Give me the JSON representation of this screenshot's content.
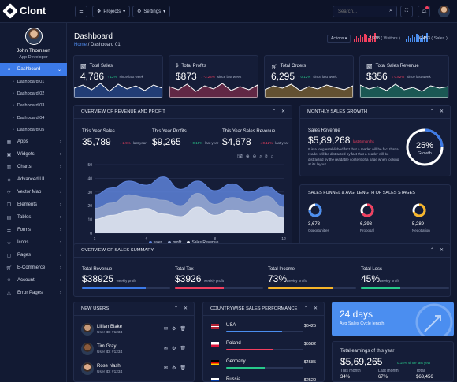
{
  "app": {
    "name": "Clont"
  },
  "topbar": {
    "projects_label": "Projects",
    "settings_label": "Settings",
    "search_placeholder": "Search..."
  },
  "colors": {
    "accent": "#3c7ae8",
    "positive": "#27c98a",
    "negative": "#f23f5f",
    "warning": "#f7b529"
  },
  "user": {
    "name": "John Thomson",
    "role": "App Developer"
  },
  "sidebar": {
    "dashboard_label": "Dashboard",
    "sub_items": [
      "Dashboard 01",
      "Dashboard 02",
      "Dashboard 03",
      "Dashboard 04",
      "Dashboard 05"
    ],
    "items": [
      {
        "label": "Apps",
        "icon": "grid-icon"
      },
      {
        "label": "Widgets",
        "icon": "widget-icon"
      },
      {
        "label": "Charts",
        "icon": "chart-icon"
      },
      {
        "label": "Advanced UI",
        "icon": "layers-icon"
      },
      {
        "label": "Vector Map",
        "icon": "map-icon"
      },
      {
        "label": "Elements",
        "icon": "cube-icon"
      },
      {
        "label": "Tables",
        "icon": "table-icon"
      },
      {
        "label": "Forms",
        "icon": "form-icon"
      },
      {
        "label": "Icons",
        "icon": "star-icon"
      },
      {
        "label": "Pages",
        "icon": "page-icon"
      },
      {
        "label": "E-Commerce",
        "icon": "cart-icon"
      },
      {
        "label": "Account",
        "icon": "user-icon"
      },
      {
        "label": "Error Pages",
        "icon": "warning-icon"
      }
    ]
  },
  "page": {
    "title": "Dashboard",
    "breadcrumb_home": "Home",
    "breadcrumb_sep": "/",
    "breadcrumb_current": "Dashboard 01",
    "actions_label": "Actions",
    "visitors_value": "2,978",
    "visitors_label": "( Visitors )",
    "sales_value": "6,453",
    "sales_label": "( Sales )"
  },
  "stats": [
    {
      "label": "Total Sales",
      "icon": "chart-line-icon",
      "value": "4,786",
      "change": "12%",
      "direction": "up",
      "note": "since last week",
      "color": "#3c7ae8"
    },
    {
      "label": "Total Profits",
      "icon": "dollar-icon",
      "value": "$873",
      "change": "-3.24%",
      "direction": "down",
      "note": "since last week",
      "color": "#f23f5f"
    },
    {
      "label": "Total Orders",
      "icon": "cart-icon",
      "value": "6,295",
      "change": "0.12%",
      "direction": "up",
      "note": "since last week",
      "color": "#f7b529"
    },
    {
      "label": "Total Sales Revenue",
      "icon": "trend-icon",
      "value": "$356",
      "change": "0.82%",
      "direction": "down",
      "note": "since last week",
      "color": "#27c98a"
    }
  ],
  "revenue": {
    "title": "OVERVIEW OF REVENUE AND PROFIT",
    "kpis": [
      {
        "label": "This Year Sales",
        "value": "35,789",
        "change": "2.9%",
        "direction": "down",
        "note": "last year"
      },
      {
        "label": "This Year Profits",
        "value": "$9,265",
        "change": "0.15%",
        "direction": "up",
        "note": "last year"
      },
      {
        "label": "This Year Sales Revenue",
        "value": "$4,678",
        "change": "0.12%",
        "direction": "down",
        "note": "last year"
      }
    ]
  },
  "chart_data": {
    "type": "area",
    "x": [
      1,
      2,
      3,
      4,
      5,
      6,
      7,
      8,
      9,
      10,
      11,
      12
    ],
    "x_ticks": [
      1,
      4,
      8,
      12
    ],
    "y_ticks": [
      0,
      10,
      20,
      30,
      40,
      50
    ],
    "ylim": [
      0,
      50
    ],
    "grid": true,
    "legend_position": "bottom",
    "series": [
      {
        "name": "sales",
        "color": "#5d82d9",
        "values": [
          28,
          33,
          38,
          35,
          41,
          32,
          38,
          31,
          36,
          30,
          34,
          28
        ]
      },
      {
        "name": "profit",
        "color": "#95a6cc",
        "values": [
          18,
          22,
          28,
          26,
          24,
          20,
          29,
          21,
          26,
          23,
          27,
          19
        ]
      },
      {
        "name": "Sales Revenue",
        "color": "#dfe4ee",
        "values": [
          10,
          13,
          16,
          18,
          14,
          12,
          19,
          13,
          17,
          14,
          16,
          11
        ]
      }
    ]
  },
  "monthly": {
    "title": "MONTHLY SALES GROWTH",
    "label": "Sales Revenue",
    "value": "$5,89,268",
    "change": "last 6 months",
    "text": "It is a long established fact that a reader will be fact that a reader will be distracted by fact that a reader will be distracted by the readable content of a page when looking at its layout.",
    "gauge_value": "25%",
    "gauge_label": "Growth",
    "gauge_fraction": 0.25
  },
  "funnel": {
    "title": "SALES FUNNEL & AVG. LENGTH OF SALES STAGES",
    "items": [
      {
        "value": "3,678",
        "label": "Opportunities",
        "color": "#4b8ef0",
        "fraction": 0.75
      },
      {
        "value": "6,398",
        "label": "Proposal",
        "color": "#f23f5f",
        "fraction": 0.65
      },
      {
        "value": "5,289",
        "label": "Negotiation",
        "color": "#f7b529",
        "fraction": 0.7
      }
    ]
  },
  "summary": {
    "title": "OVERVIEW OF SALES SUMMARY",
    "items": [
      {
        "label": "Total Revenue",
        "value": "$38925",
        "note": "weekly profit",
        "color": "#3c7ae8",
        "fraction": 0.72
      },
      {
        "label": "Total Tax",
        "value": "$3926",
        "note": "weekly profit",
        "color": "#f23f5f",
        "fraction": 0.55
      },
      {
        "label": "Total Income",
        "value": "73%",
        "note": "weekly profit",
        "color": "#f7b529",
        "fraction": 0.73
      },
      {
        "label": "Total Loss",
        "value": "45%",
        "note": "weekly profit",
        "color": "#27c98a",
        "fraction": 0.45
      }
    ]
  },
  "new_users": {
    "title": "NEW USERS",
    "users": [
      {
        "name": "Lillian Blake",
        "id": "User ID: #1234"
      },
      {
        "name": "Tim Gray",
        "id": "User ID: #1234"
      },
      {
        "name": "Rose Nash",
        "id": "User ID: #1234"
      }
    ]
  },
  "countries": {
    "title": "COUNTRYWISE SALES PERFORMANCE",
    "items": [
      {
        "name": "USA",
        "value": "$6425",
        "color": "#4b8ef0",
        "fraction": 0.72
      },
      {
        "name": "Poland",
        "value": "$5582",
        "color": "#f23f5f",
        "fraction": 0.6
      },
      {
        "name": "Germany",
        "value": "$4585",
        "color": "#27c98a",
        "fraction": 0.5
      },
      {
        "name": "Russia",
        "value": "$2520",
        "color": "#f7b529",
        "fraction": 0.3
      }
    ]
  },
  "cycle": {
    "value": "24 days",
    "label": "Avg Sales Cycle length"
  },
  "earnings": {
    "label": "Total earnings of this year",
    "value": "$5,69,265",
    "change": "0.15% since last year",
    "cells": [
      {
        "label": "This month",
        "value": "34%"
      },
      {
        "label": "Last month",
        "value": "67%"
      },
      {
        "label": "Total",
        "value": "$63,456"
      }
    ]
  }
}
